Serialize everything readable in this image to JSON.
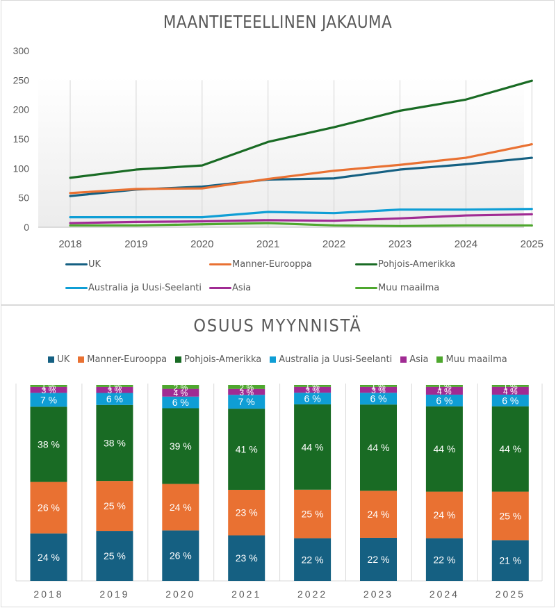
{
  "chart_data": [
    {
      "type": "line",
      "title": "MAANTIETEELLINEN JAKAUMA",
      "xlabel": "",
      "ylabel": "",
      "categories": [
        "2018",
        "2019",
        "2020",
        "2021",
        "2022",
        "2023",
        "2024",
        "2025"
      ],
      "ylim": [
        0,
        300
      ],
      "yticks": [
        "0",
        "50",
        "100",
        "150",
        "200",
        "250",
        "300"
      ],
      "ytick_values": [
        0,
        50,
        100,
        150,
        200,
        250,
        300
      ],
      "grid": "vertical",
      "legend": "bottom",
      "series": [
        {
          "name": "UK",
          "color": "#156082",
          "values": [
            53,
            64,
            69,
            81,
            83,
            98,
            107,
            118
          ]
        },
        {
          "name": "Manner-Eurooppa",
          "color": "#e97132",
          "values": [
            58,
            65,
            66,
            82,
            96,
            106,
            118,
            141
          ]
        },
        {
          "name": "Pohjois-Amerikka",
          "color": "#196b24",
          "values": [
            84,
            98,
            105,
            145,
            170,
            198,
            217,
            249
          ]
        },
        {
          "name": "Australia ja Uusi-Seelanti",
          "color": "#0f9ed5",
          "values": [
            17,
            17,
            17,
            26,
            24,
            30,
            30,
            31
          ]
        },
        {
          "name": "Asia",
          "color": "#a02b93",
          "values": [
            7,
            9,
            10,
            12,
            11,
            15,
            20,
            22
          ]
        },
        {
          "name": "Muu maailma",
          "color": "#4ea72e",
          "values": [
            3,
            3,
            5,
            7,
            3,
            2,
            3,
            3
          ]
        }
      ]
    },
    {
      "type": "bar",
      "stacked": "percent",
      "title": "OSUUS MYYNNISTÄ",
      "xlabel": "",
      "ylabel": "",
      "categories": [
        "2018",
        "2019",
        "2020",
        "2021",
        "2022",
        "2023",
        "2024",
        "2025"
      ],
      "ylim": [
        0,
        100
      ],
      "legend": "top",
      "series": [
        {
          "name": "UK",
          "color": "#156082",
          "values": [
            24,
            25,
            26,
            23,
            22,
            22,
            22,
            21
          ],
          "labels": [
            "24 %",
            "25 %",
            "26 %",
            "23 %",
            "22 %",
            "22 %",
            "22 %",
            "21 %"
          ]
        },
        {
          "name": "Manner-Eurooppa",
          "color": "#e97132",
          "values": [
            26,
            25,
            24,
            23,
            25,
            24,
            24,
            25
          ],
          "labels": [
            "26 %",
            "25 %",
            "24 %",
            "23 %",
            "25 %",
            "24 %",
            "24 %",
            "25 %"
          ]
        },
        {
          "name": "Pohjois-Amerikka",
          "color": "#196b24",
          "values": [
            38,
            38,
            39,
            41,
            44,
            44,
            44,
            44
          ],
          "labels": [
            "38 %",
            "38 %",
            "39 %",
            "41 %",
            "44 %",
            "44 %",
            "44 %",
            "44 %"
          ]
        },
        {
          "name": "Australia ja Uusi-Seelanti",
          "color": "#0f9ed5",
          "values": [
            7,
            6,
            6,
            7,
            6,
            6,
            6,
            6
          ],
          "labels": [
            "7 %",
            "6 %",
            "6 %",
            "7 %",
            "6 %",
            "6 %",
            "6 %",
            "6 %"
          ]
        },
        {
          "name": "Asia",
          "color": "#a02b93",
          "values": [
            3,
            3,
            4,
            3,
            3,
            3,
            4,
            4
          ],
          "labels": [
            "3 %",
            "3 %",
            "4 %",
            "3 %",
            "3 %",
            "3 %",
            "4 %",
            "4 %"
          ]
        },
        {
          "name": "Muu maailma",
          "color": "#4ea72e",
          "values": [
            1,
            1,
            2,
            2,
            1,
            1,
            1,
            1
          ],
          "labels": [
            "1 %",
            "1 %",
            "2 %",
            "2 %",
            "1 %",
            "1 %",
            "1 %",
            "1 %"
          ]
        }
      ]
    }
  ]
}
